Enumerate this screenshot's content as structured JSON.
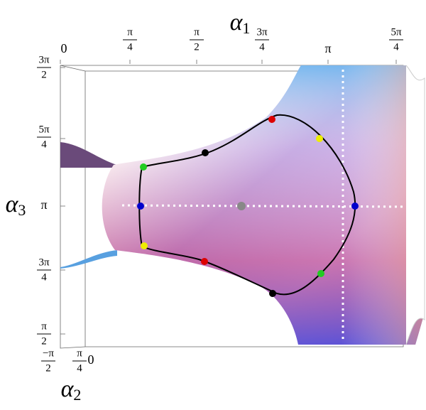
{
  "axes": {
    "alpha1": {
      "symbol": "α",
      "subscript": "1",
      "ticks": [
        {
          "text": "0"
        },
        {
          "numerator": "π",
          "denominator": "4"
        },
        {
          "numerator": "π",
          "denominator": "2"
        },
        {
          "numerator": "3π",
          "denominator": "4"
        },
        {
          "text": "π"
        },
        {
          "numerator": "5π",
          "denominator": "4"
        }
      ]
    },
    "alpha3": {
      "symbol": "α",
      "subscript": "3",
      "ticks": [
        {
          "numerator": "3π",
          "denominator": "2"
        },
        {
          "numerator": "5π",
          "denominator": "4"
        },
        {
          "text": "π"
        },
        {
          "numerator": "3π",
          "denominator": "4"
        },
        {
          "numerator": "π",
          "denominator": "2"
        }
      ]
    },
    "alpha2": {
      "symbol": "α",
      "subscript": "2",
      "ticks": [
        {
          "numerator": "−π",
          "denominator": "2"
        },
        {
          "numerator": "π",
          "denominator": "4"
        },
        {
          "text": "0"
        }
      ]
    }
  }
}
